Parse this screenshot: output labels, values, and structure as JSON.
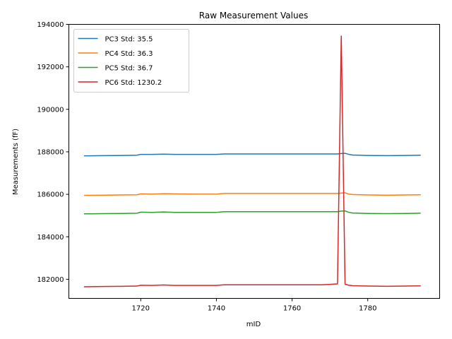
{
  "chart_data": {
    "type": "line",
    "title": "Raw Measurement Values",
    "xlabel": "mID",
    "ylabel": "Measurements (fF)",
    "xlim": [
      1701,
      1799
    ],
    "ylim": [
      181100,
      194000
    ],
    "xticks": [
      1720,
      1740,
      1760,
      1780
    ],
    "yticks": [
      182000,
      184000,
      186000,
      188000,
      190000,
      192000,
      194000
    ],
    "x": [
      1705,
      1710,
      1715,
      1719,
      1720,
      1723,
      1726,
      1729,
      1735,
      1740,
      1742,
      1750,
      1760,
      1768,
      1772,
      1773,
      1774,
      1775,
      1776,
      1780,
      1785,
      1790,
      1794
    ],
    "series": [
      {
        "name": "PC3 Std: 35.5",
        "color": "#1f77b4",
        "values": [
          187810,
          187820,
          187830,
          187840,
          187880,
          187880,
          187890,
          187880,
          187880,
          187880,
          187900,
          187900,
          187900,
          187900,
          187900,
          187920,
          187930,
          187880,
          187850,
          187830,
          187820,
          187830,
          187840
        ]
      },
      {
        "name": "PC4 Std: 36.3",
        "color": "#ff7f0e",
        "values": [
          185950,
          185960,
          185970,
          185980,
          186020,
          186010,
          186030,
          186020,
          186010,
          186010,
          186040,
          186040,
          186040,
          186040,
          186040,
          186060,
          186070,
          186010,
          185990,
          185970,
          185960,
          185970,
          185980
        ]
      },
      {
        "name": "PC5 Std: 36.7",
        "color": "#2ca02c",
        "values": [
          185080,
          185090,
          185100,
          185110,
          185160,
          185150,
          185170,
          185150,
          185150,
          185150,
          185180,
          185180,
          185180,
          185180,
          185180,
          185210,
          185220,
          185150,
          185120,
          185100,
          185090,
          185100,
          185110
        ]
      },
      {
        "name": "PC6 Std: 1230.2",
        "color": "#d62728",
        "values": [
          181650,
          181660,
          181670,
          181680,
          181720,
          181710,
          181730,
          181710,
          181710,
          181710,
          181740,
          181740,
          181740,
          181740,
          181780,
          193450,
          181770,
          181720,
          181700,
          181680,
          181670,
          181680,
          181690
        ]
      }
    ],
    "legend": "top-left",
    "grid": false
  }
}
